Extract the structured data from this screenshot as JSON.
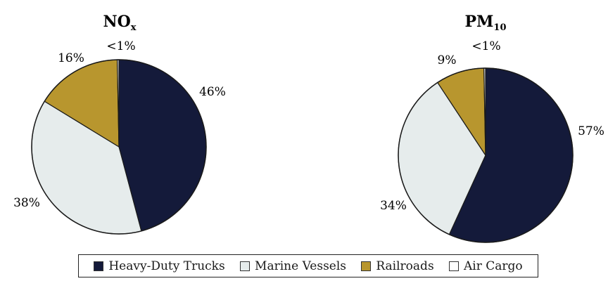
{
  "chart_data": [
    {
      "type": "pie",
      "title": "NO",
      "title_subscript": "x",
      "slices": [
        {
          "label": "Heavy-Duty Trucks",
          "value": 46,
          "value_label": "46%",
          "color": "#141a3a"
        },
        {
          "label": "Marine Vessels",
          "value": 38,
          "value_label": "38%",
          "color": "#e6ecec"
        },
        {
          "label": "Railroads",
          "value": 16,
          "value_label": "16%",
          "color": "#b8962e"
        },
        {
          "label": "Air Cargo",
          "value": 0.3,
          "value_label": "<1%",
          "color": "#ffffff"
        }
      ]
    },
    {
      "type": "pie",
      "title": "PM",
      "title_subscript": "10",
      "slices": [
        {
          "label": "Heavy-Duty Trucks",
          "value": 57,
          "value_label": "57%",
          "color": "#141a3a"
        },
        {
          "label": "Marine Vessels",
          "value": 34,
          "value_label": "34%",
          "color": "#e6ecec"
        },
        {
          "label": "Railroads",
          "value": 9,
          "value_label": "9%",
          "color": "#b8962e"
        },
        {
          "label": "Air Cargo",
          "value": 0.3,
          "value_label": "<1%",
          "color": "#ffffff"
        }
      ]
    }
  ],
  "legend": {
    "placement": "bottom",
    "items": [
      {
        "label": "Heavy-Duty Trucks",
        "color": "#141a3a"
      },
      {
        "label": "Marine Vessels",
        "color": "#e6ecec"
      },
      {
        "label": "Railroads",
        "color": "#b8962e"
      },
      {
        "label": "Air Cargo",
        "color": "#ffffff"
      }
    ]
  }
}
